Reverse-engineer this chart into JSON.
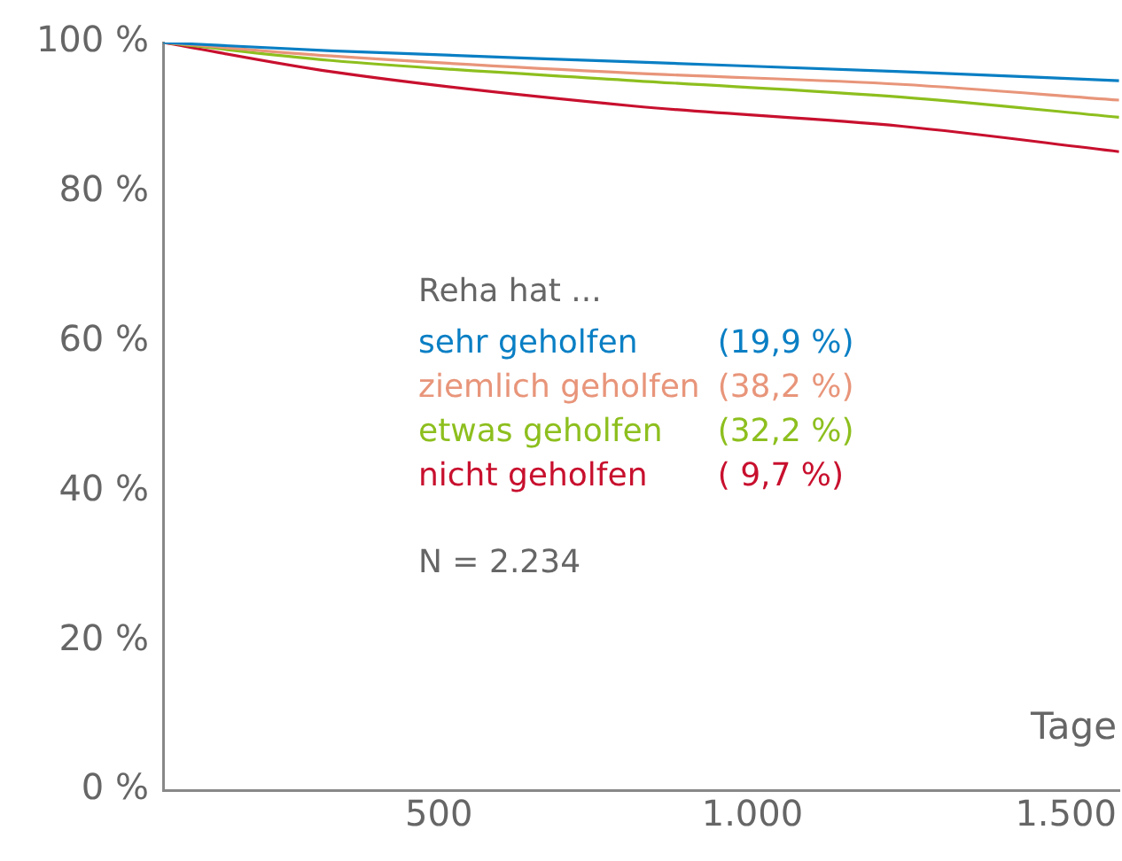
{
  "chart_data": {
    "type": "line",
    "xlabel": "Tage",
    "legend_title": "Reha hat ...",
    "annotations": [
      "N = 2.234"
    ],
    "x": [
      60,
      328,
      811,
      1238,
      1585
    ],
    "series": [
      {
        "name": "sehr geholfen (19,9 %)",
        "color": "#0a7fc4",
        "values": [
          100,
          98.9,
          97.4,
          96.1,
          94.9
        ]
      },
      {
        "name": "ziemlich geholfen (38,2 %)",
        "color": "#e8957a",
        "values": [
          100,
          98.2,
          95.9,
          94.4,
          92.3
        ]
      },
      {
        "name": "etwas geholfen (32,2 %)",
        "color": "#8dbf1e",
        "values": [
          100,
          97.6,
          94.9,
          92.7,
          90.0
        ]
      },
      {
        "name": "nicht geholfen ( 9,7 %)",
        "color": "#c8102e",
        "values": [
          100,
          96.1,
          91.5,
          88.8,
          85.4
        ]
      }
    ],
    "xlim": [
      60,
      1585
    ],
    "xticks": [
      500,
      {
        "value": 1000,
        "label": "1.000"
      },
      {
        "value": 1500,
        "label": "1.500"
      }
    ],
    "ylim": [
      0,
      100
    ],
    "yticks": [
      {
        "value": 0,
        "label": "0 %"
      },
      {
        "value": 20,
        "label": "20 %"
      },
      {
        "value": 40,
        "label": "40 %"
      },
      {
        "value": 60,
        "label": "60 %"
      },
      {
        "value": 80,
        "label": "80 %"
      },
      {
        "value": 100,
        "label": "100 %"
      }
    ],
    "grid": false,
    "legend": "center",
    "marker": "none",
    "line_style": "solid"
  }
}
